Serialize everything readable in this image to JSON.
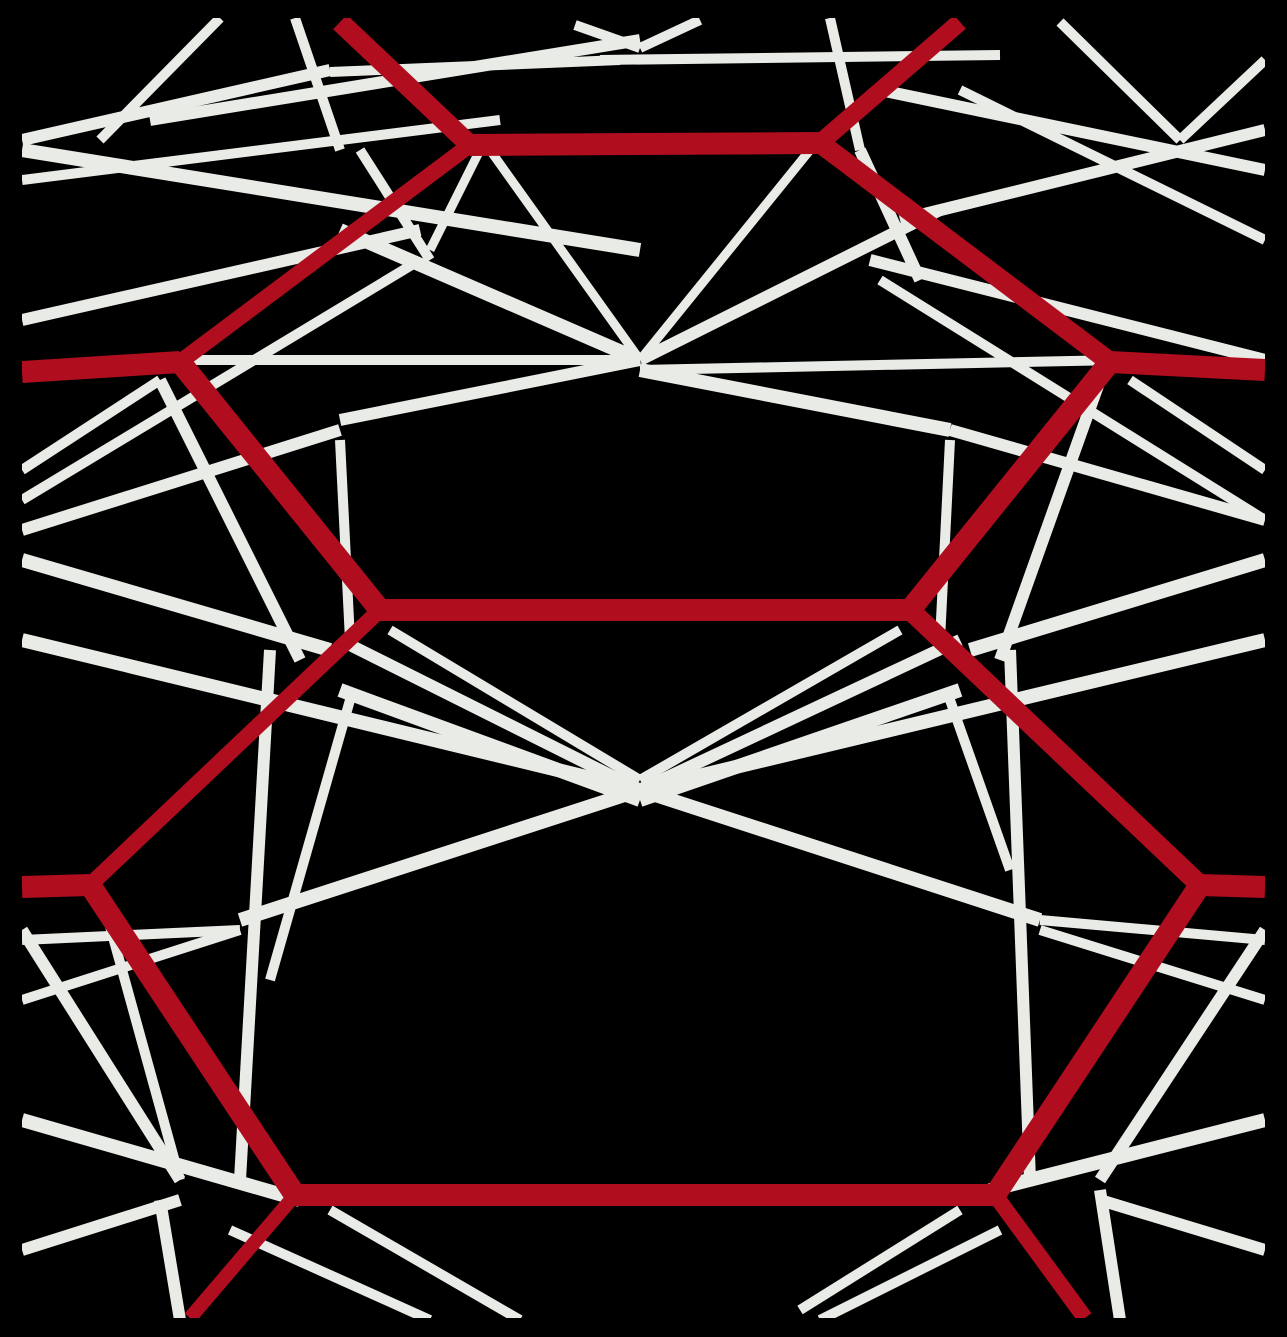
{
  "diagram": {
    "kind": "hexagonal lattice over line network",
    "colors": {
      "background": "#ffffff",
      "foreground_network": "#b00d1e",
      "background_network": "#e8ebe6"
    },
    "counts": {
      "foreground_segments": 20,
      "background_segments": 62
    }
  }
}
